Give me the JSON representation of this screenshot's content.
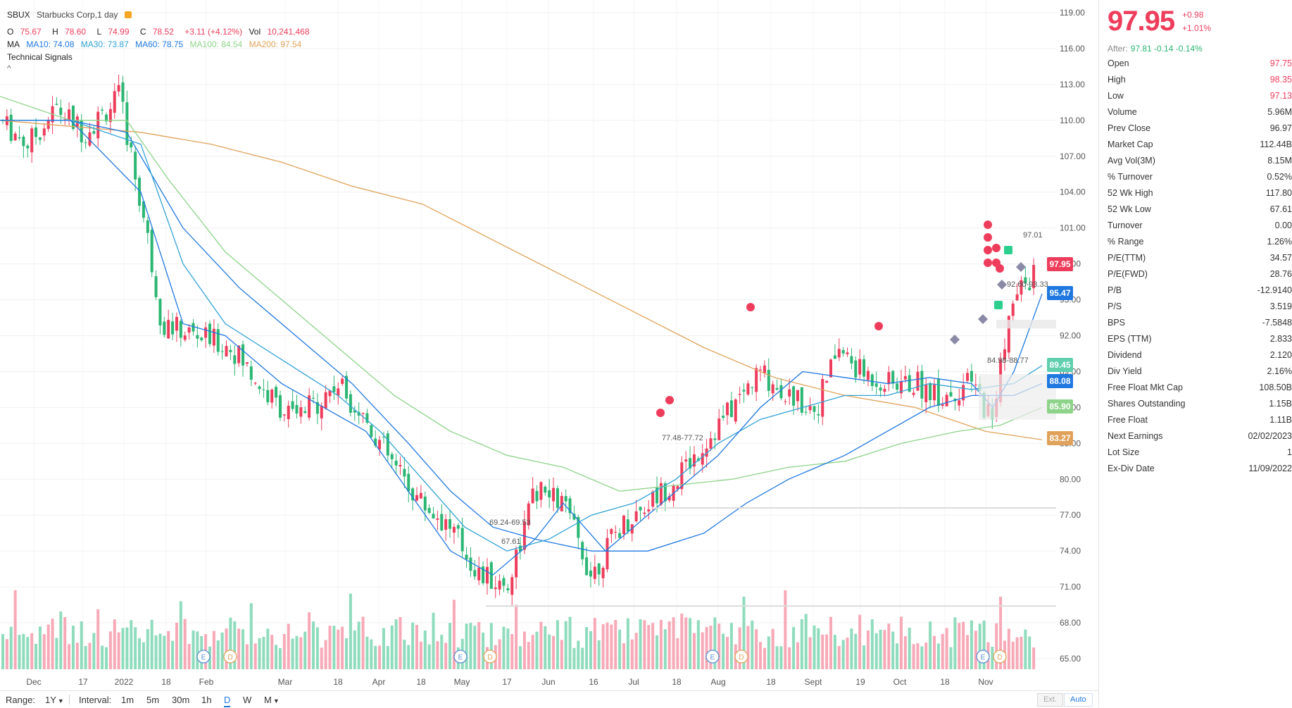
{
  "header": {
    "symbol": "SBUX",
    "company": "Starbucks Corp,1 day",
    "ohlc": {
      "o_label": "O",
      "o": "75.67",
      "h_label": "H",
      "h": "78.60",
      "l_label": "L",
      "l": "74.99",
      "c_label": "C",
      "c": "78.52",
      "change": "+3.11 (+4.12%)",
      "vol_label": "Vol",
      "vol": "10,241,468"
    },
    "ma": {
      "label": "MA",
      "ma10": "MA10: 74.08",
      "ma30": "MA30: 73.87",
      "ma60": "MA60: 78.75",
      "ma100": "MA100: 84.54",
      "ma200": "MA200: 97.54"
    },
    "technical_signals": "Technical Signals",
    "collapse_caret": "^"
  },
  "chart_data": {
    "type": "candlestick",
    "ylim": [
      63.5,
      119.8
    ],
    "y_ticks": [
      "119.00",
      "116.00",
      "113.00",
      "110.00",
      "107.00",
      "104.00",
      "101.00",
      "98.00",
      "95.00",
      "92.00",
      "89.00",
      "86.00",
      "83.00",
      "80.00",
      "77.00",
      "74.00",
      "71.00",
      "68.00",
      "65.00"
    ],
    "x_ticks": [
      "Dec",
      "17",
      "2022",
      "18",
      "Feb",
      "Mar",
      "18",
      "Apr",
      "18",
      "May",
      "17",
      "Jun",
      "16",
      "Jul",
      "18",
      "Aug",
      "18",
      "Sept",
      "19",
      "Oct",
      "18",
      "Nov"
    ],
    "price_tags": [
      {
        "value": "97.95",
        "color": "#ee3d5c"
      },
      {
        "value": "95.47",
        "color": "#1f78e0"
      },
      {
        "value": "89.45",
        "color": "#5fcfae"
      },
      {
        "value": "88.08",
        "color": "#1f78e0"
      },
      {
        "value": "85.90",
        "color": "#8ed38a"
      },
      {
        "value": "83.27",
        "color": "#e0a25a"
      }
    ],
    "annotations": [
      "97.01",
      "92.60-93.33",
      "84.98-88.77",
      "77.48-77.72",
      "69.24-69.53",
      "67.61"
    ],
    "event_markers": [
      "E",
      "D",
      "E",
      "D",
      "E",
      "D",
      "E",
      "D"
    ],
    "series": [
      {
        "name": "MA10"
      },
      {
        "name": "MA30"
      },
      {
        "name": "MA60"
      },
      {
        "name": "MA100"
      },
      {
        "name": "MA200"
      }
    ],
    "colors": {
      "up": "#ee3d5c",
      "down": "#2bb673",
      "up_vol": "#f7a9b7",
      "down_vol": "#8fdcbd"
    }
  },
  "quote": {
    "price": "97.95",
    "change": "+0.98",
    "change_pct": "+1.01%",
    "after_label": "After:",
    "after_value": "97.81 -0.14 -0.14%"
  },
  "stats": [
    {
      "key": "Open",
      "value": "97.75",
      "color": "red"
    },
    {
      "key": "High",
      "value": "98.35",
      "color": "red"
    },
    {
      "key": "Low",
      "value": "97.13",
      "color": "red"
    },
    {
      "key": "Volume",
      "value": "5.96M"
    },
    {
      "key": "Prev Close",
      "value": "96.97"
    },
    {
      "key": "Market Cap",
      "value": "112.44B"
    },
    {
      "key": "Avg Vol(3M)",
      "value": "8.15M"
    },
    {
      "key": "% Turnover",
      "value": "0.52%"
    },
    {
      "key": "52 Wk High",
      "value": "117.80"
    },
    {
      "key": "52 Wk Low",
      "value": "67.61"
    },
    {
      "key": "Turnover",
      "value": "0.00"
    },
    {
      "key": "% Range",
      "value": "1.26%"
    },
    {
      "key": "P/E(TTM)",
      "value": "34.57"
    },
    {
      "key": "P/E(FWD)",
      "value": "28.76"
    },
    {
      "key": "P/B",
      "value": "-12.9140"
    },
    {
      "key": "P/S",
      "value": "3.519"
    },
    {
      "key": "BPS",
      "value": "-7.5848"
    },
    {
      "key": "EPS (TTM)",
      "value": "2.833"
    },
    {
      "key": "Dividend",
      "value": "2.120"
    },
    {
      "key": "Div Yield",
      "value": "2.16%"
    },
    {
      "key": "Free Float Mkt Cap",
      "value": "108.50B"
    },
    {
      "key": "Shares Outstanding",
      "value": "1.15B"
    },
    {
      "key": "Free Float",
      "value": "1.11B"
    },
    {
      "key": "Next Earnings",
      "value": "02/02/2023"
    },
    {
      "key": "Lot Size",
      "value": "1"
    },
    {
      "key": "Ex-Div Date",
      "value": "11/09/2022"
    }
  ],
  "bottom_bar": {
    "range_label": "Range:",
    "range_value": "1Y",
    "interval_label": "Interval:",
    "intervals": [
      "1m",
      "5m",
      "30m",
      "1h",
      "D",
      "W",
      "M"
    ],
    "active_interval": "D",
    "ext_label": "Ext.",
    "auto_label": "Auto"
  }
}
